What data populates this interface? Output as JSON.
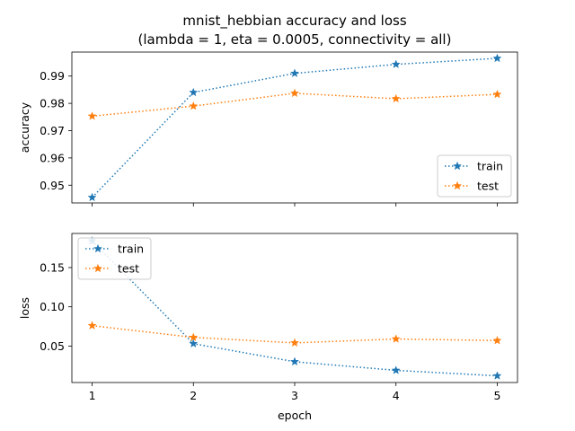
{
  "chart_data": {
    "type": "line",
    "title": "mnist_hebbian accuracy and loss",
    "subtitle": "(lambda = 1, eta = 0.0005, connectivity = all)",
    "xlabel": "epoch",
    "x": [
      1,
      2,
      3,
      4,
      5
    ],
    "xticks": [
      "1",
      "2",
      "3",
      "4",
      "5"
    ],
    "colors": {
      "train": "#1f77b4",
      "test": "#ff7f0e"
    },
    "panels": [
      {
        "ylabel": "accuracy",
        "ylim": [
          0.9435,
          0.9988
        ],
        "yticks": [
          0.95,
          0.96,
          0.97,
          0.98,
          0.99
        ],
        "ytick_labels": [
          "0.95",
          "0.96",
          "0.97",
          "0.98",
          "0.99"
        ],
        "legend_position": "lower-right",
        "series": [
          {
            "name": "train",
            "values": [
              0.9455,
              0.984,
              0.991,
              0.9943,
              0.9965
            ]
          },
          {
            "name": "test",
            "values": [
              0.9753,
              0.979,
              0.9837,
              0.9817,
              0.9833
            ]
          }
        ]
      },
      {
        "ylabel": "loss",
        "ylim": [
          0.0035,
          0.1935
        ],
        "yticks": [
          0.05,
          0.1,
          0.15
        ],
        "ytick_labels": [
          "0.05",
          "0.10",
          "0.15"
        ],
        "legend_position": "upper-left",
        "series": [
          {
            "name": "train",
            "values": [
              0.184,
              0.053,
              0.03,
              0.019,
              0.012
            ]
          },
          {
            "name": "test",
            "values": [
              0.076,
              0.061,
              0.054,
              0.059,
              0.057
            ]
          }
        ]
      }
    ]
  }
}
